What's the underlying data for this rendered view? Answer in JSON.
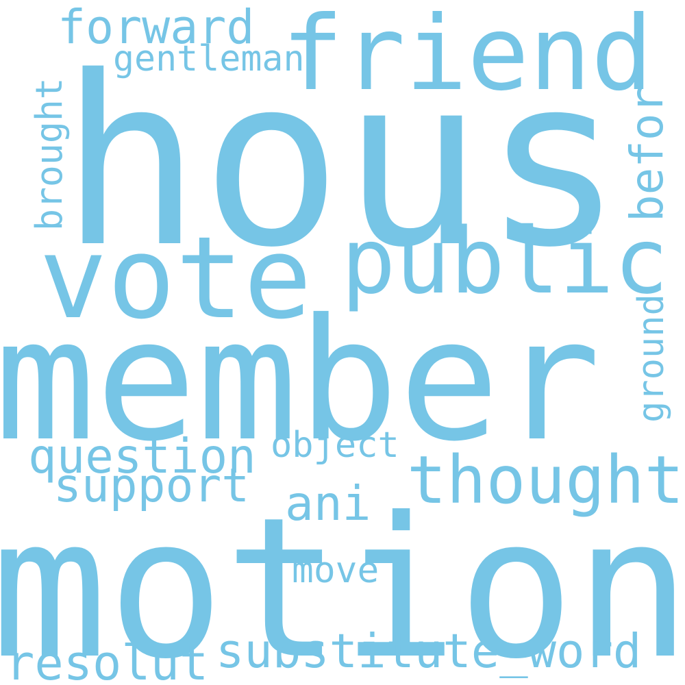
{
  "word_color": "#76c5e6",
  "background": "#ffffff",
  "words": [
    {
      "key": "hous",
      "text": "hous",
      "orientation": "horizontal"
    },
    {
      "key": "member",
      "text": "member",
      "orientation": "horizontal"
    },
    {
      "key": "motion",
      "text": "motion",
      "orientation": "horizontal"
    },
    {
      "key": "vote",
      "text": "vote",
      "orientation": "horizontal"
    },
    {
      "key": "public",
      "text": "public",
      "orientation": "horizontal"
    },
    {
      "key": "friend",
      "text": "friend",
      "orientation": "horizontal"
    },
    {
      "key": "thought",
      "text": "thought",
      "orientation": "horizontal"
    },
    {
      "key": "question",
      "text": "question",
      "orientation": "horizontal"
    },
    {
      "key": "support",
      "text": "support",
      "orientation": "horizontal"
    },
    {
      "key": "substitute-word",
      "text": "substitute_word",
      "orientation": "horizontal"
    },
    {
      "key": "resolut",
      "text": "resolut",
      "orientation": "horizontal"
    },
    {
      "key": "forward",
      "text": "forward",
      "orientation": "horizontal"
    },
    {
      "key": "gentleman",
      "text": "gentleman",
      "orientation": "horizontal"
    },
    {
      "key": "object",
      "text": "object",
      "orientation": "horizontal"
    },
    {
      "key": "ani",
      "text": "ani",
      "orientation": "horizontal"
    },
    {
      "key": "move",
      "text": "move",
      "orientation": "horizontal"
    },
    {
      "key": "befor",
      "text": "befor",
      "orientation": "vertical"
    },
    {
      "key": "ground",
      "text": "ground",
      "orientation": "vertical"
    },
    {
      "key": "brought",
      "text": "brought",
      "orientation": "vertical"
    }
  ]
}
